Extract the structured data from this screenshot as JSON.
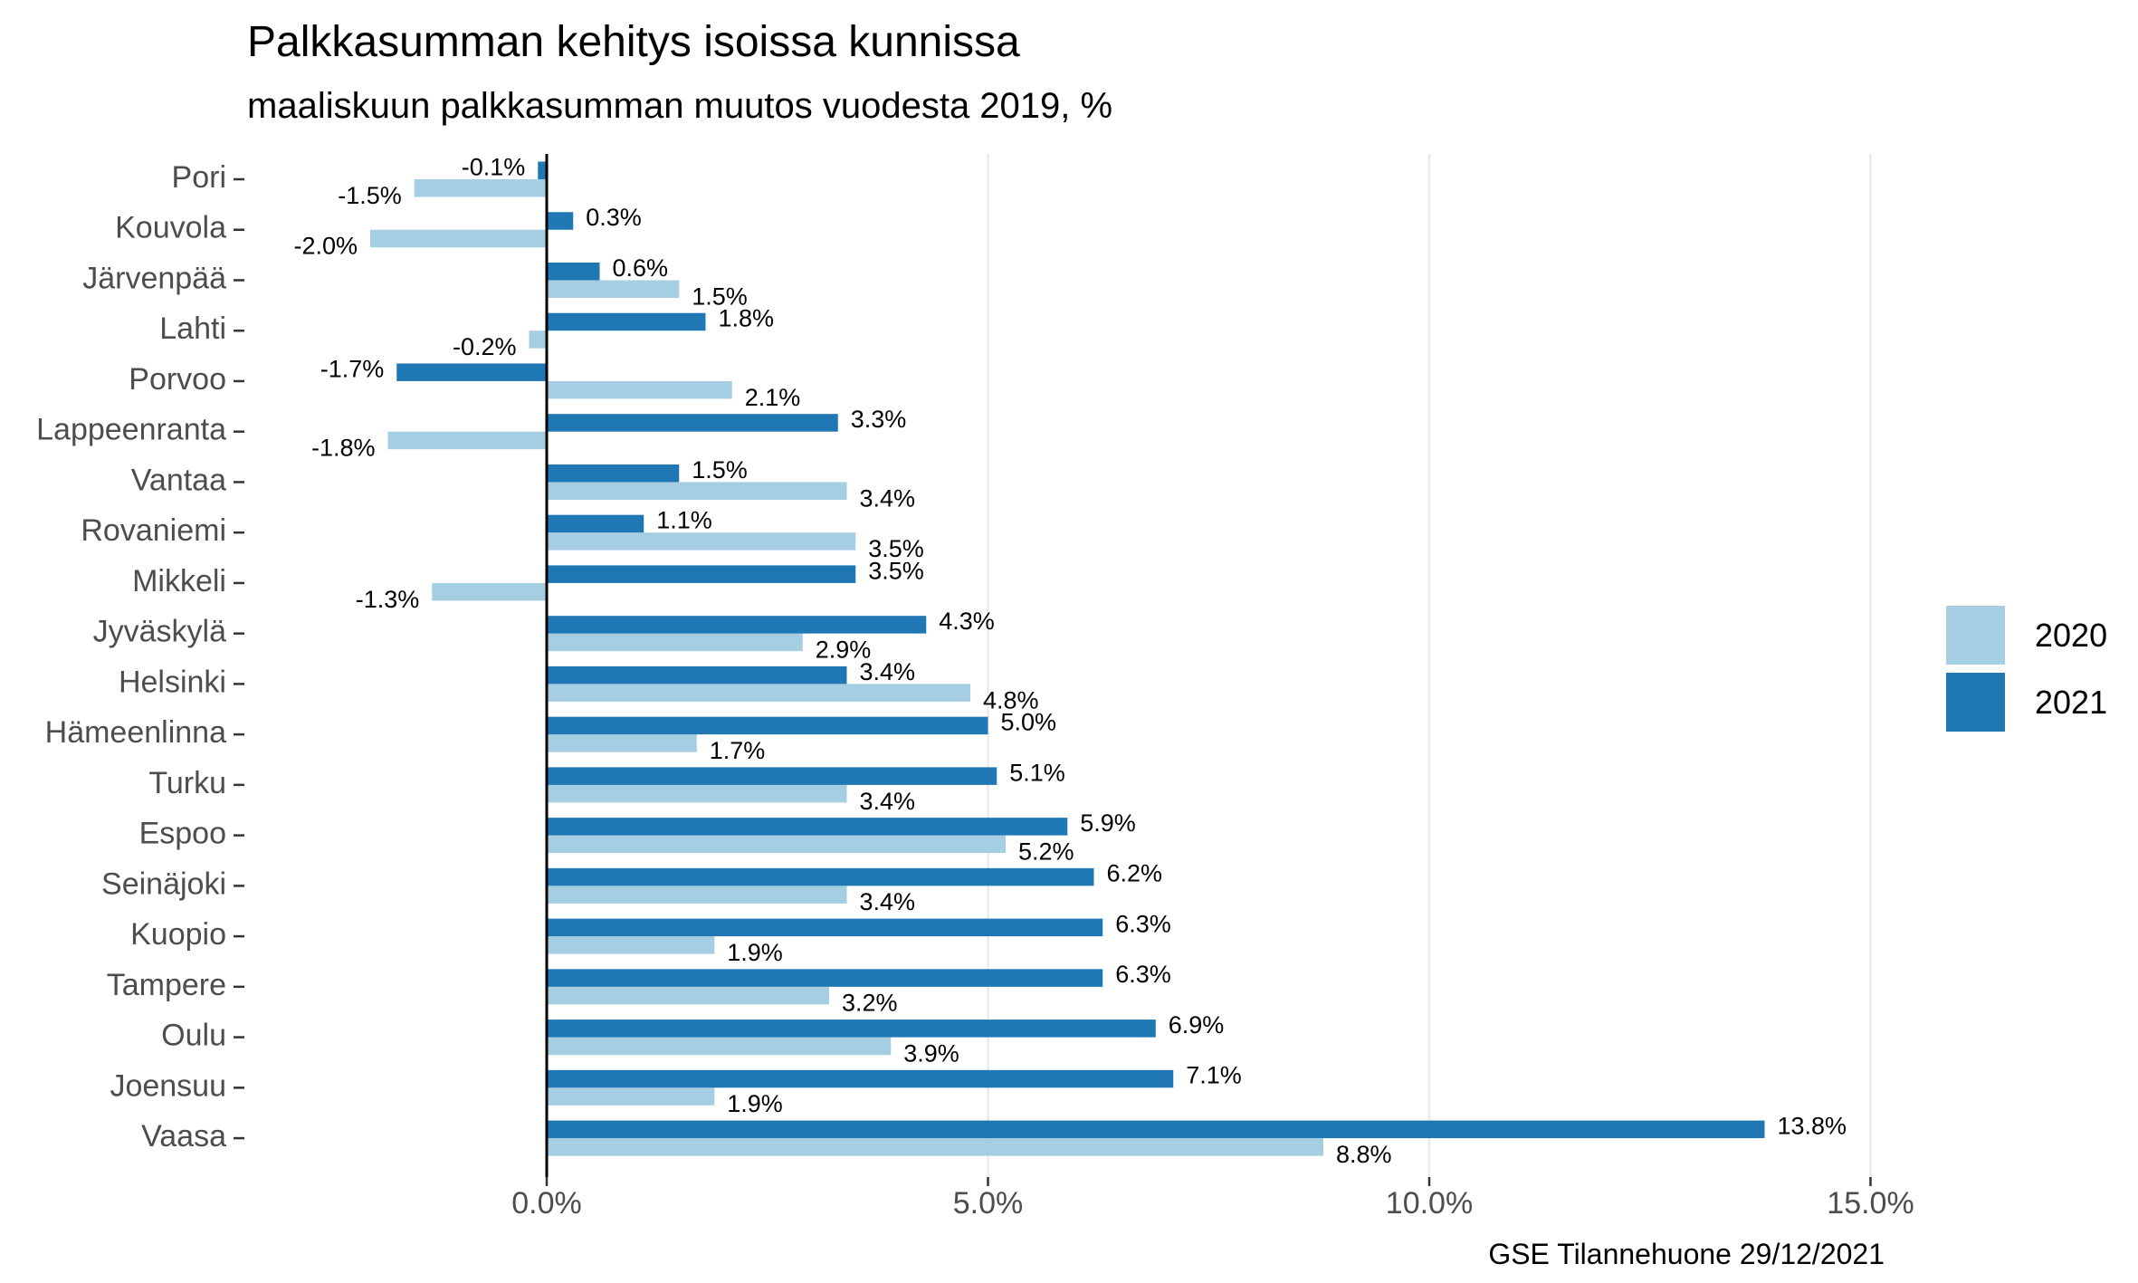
{
  "chart_data": {
    "type": "bar",
    "orientation": "horizontal",
    "title": "Palkkasumman kehitys isoissa kunnissa",
    "subtitle": "maaliskuun palkkasumman muutos vuodesta 2019, %",
    "caption": "GSE Tilannehuone 29/12/2021",
    "categories": [
      "Pori",
      "Kouvola",
      "Järvenpää",
      "Lahti",
      "Porvoo",
      "Lappeenranta",
      "Vantaa",
      "Rovaniemi",
      "Mikkeli",
      "Jyväskylä",
      "Helsinki",
      "Hämeenlinna",
      "Turku",
      "Espoo",
      "Seinäjoki",
      "Kuopio",
      "Tampere",
      "Oulu",
      "Joensuu",
      "Vaasa"
    ],
    "series": [
      {
        "name": "2020",
        "color": "#a6cee3",
        "values": [
          -1.5,
          -2.0,
          1.5,
          -0.2,
          2.1,
          -1.8,
          3.4,
          3.5,
          -1.3,
          2.9,
          4.8,
          1.7,
          3.4,
          5.2,
          3.4,
          1.9,
          3.2,
          3.9,
          1.9,
          8.8
        ],
        "labels": [
          "-1.5%",
          "-2.0%",
          "1.5%",
          "-0.2%",
          "2.1%",
          "-1.8%",
          "3.4%",
          "3.5%",
          "-1.3%",
          "2.9%",
          "4.8%",
          "1.7%",
          "3.4%",
          "5.2%",
          "3.4%",
          "1.9%",
          "3.2%",
          "3.9%",
          "1.9%",
          "8.8%"
        ]
      },
      {
        "name": "2021",
        "color": "#1f78b4",
        "values": [
          -0.1,
          0.3,
          0.6,
          1.8,
          -1.7,
          3.3,
          1.5,
          1.1,
          3.5,
          4.3,
          3.4,
          5.0,
          5.1,
          5.9,
          6.2,
          6.3,
          6.3,
          6.9,
          7.1,
          13.8
        ],
        "labels": [
          "-0.1%",
          "0.3%",
          "0.6%",
          "1.8%",
          "-1.7%",
          "3.3%",
          "1.5%",
          "1.1%",
          "3.5%",
          "4.3%",
          "3.4%",
          "5.0%",
          "5.1%",
          "5.9%",
          "6.2%",
          "6.3%",
          "6.3%",
          "6.9%",
          "7.1%",
          "13.8%"
        ]
      }
    ],
    "xlim": [
      -3.4,
      17
    ],
    "xticks": [
      0,
      5,
      10,
      15
    ],
    "xtick_labels": [
      "0.0%",
      "5.0%",
      "10.0%",
      "15.0%"
    ],
    "grid": "vertical-major",
    "legend_position": "right"
  }
}
